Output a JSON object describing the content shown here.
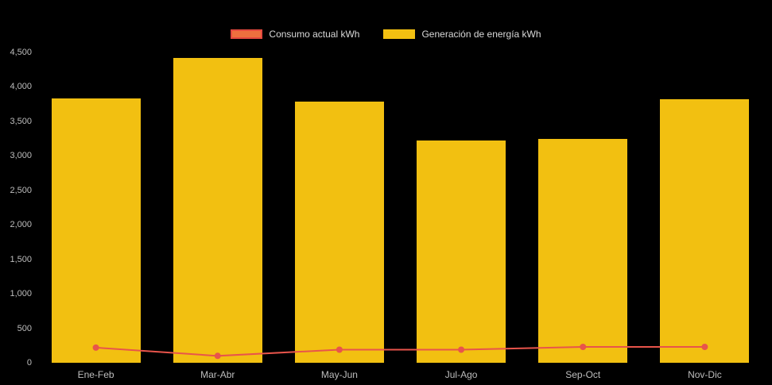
{
  "background": "#000000",
  "legend": {
    "items": [
      {
        "label": "Consumo actual kWh",
        "swatch_fill": "#ee6f3e",
        "swatch_border": "#e4493f"
      },
      {
        "label": "Generación de energía kWh",
        "swatch_fill": "#f2c011",
        "swatch_border": "#f2c011"
      }
    ]
  },
  "chart_data": {
    "type": "bar",
    "title": "",
    "categories": [
      "Ene-Feb",
      "Mar-Abr",
      "May-Jun",
      "Jul-Ago",
      "Sep-Oct",
      "Nov-Dic"
    ],
    "series": [
      {
        "name": "Consumo actual kWh",
        "type": "line",
        "color": "#e8544b",
        "values": [
          220,
          100,
          190,
          190,
          230,
          230
        ]
      },
      {
        "name": "Generación de energía kWh",
        "type": "bar",
        "color": "#f2c011",
        "values": [
          3830,
          4420,
          3790,
          3220,
          3250,
          3820
        ]
      }
    ],
    "xlabel": "",
    "ylabel": "",
    "ylim": [
      0,
      4500
    ],
    "yticks": [
      0,
      500,
      1000,
      1500,
      2000,
      2500,
      3000,
      3500,
      4000,
      4500
    ],
    "grid": false,
    "legend_position": "top"
  }
}
